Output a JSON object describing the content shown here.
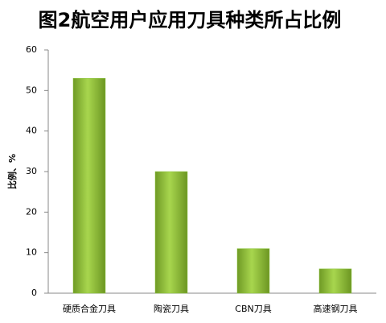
{
  "chart_data": {
    "type": "bar",
    "title": "图2航空用户应用刀具种类所占比例",
    "ylabel": "比例、%",
    "categories": [
      "硬质合金刀具",
      "陶瓷刀具",
      "CBN刀具",
      "高速钢刀具"
    ],
    "values": [
      53,
      30,
      11,
      6
    ],
    "color": "#8cc63f",
    "ylim": [
      0,
      60
    ],
    "yticks": [
      0,
      10,
      20,
      30,
      40,
      50,
      60
    ],
    "grid": false
  }
}
